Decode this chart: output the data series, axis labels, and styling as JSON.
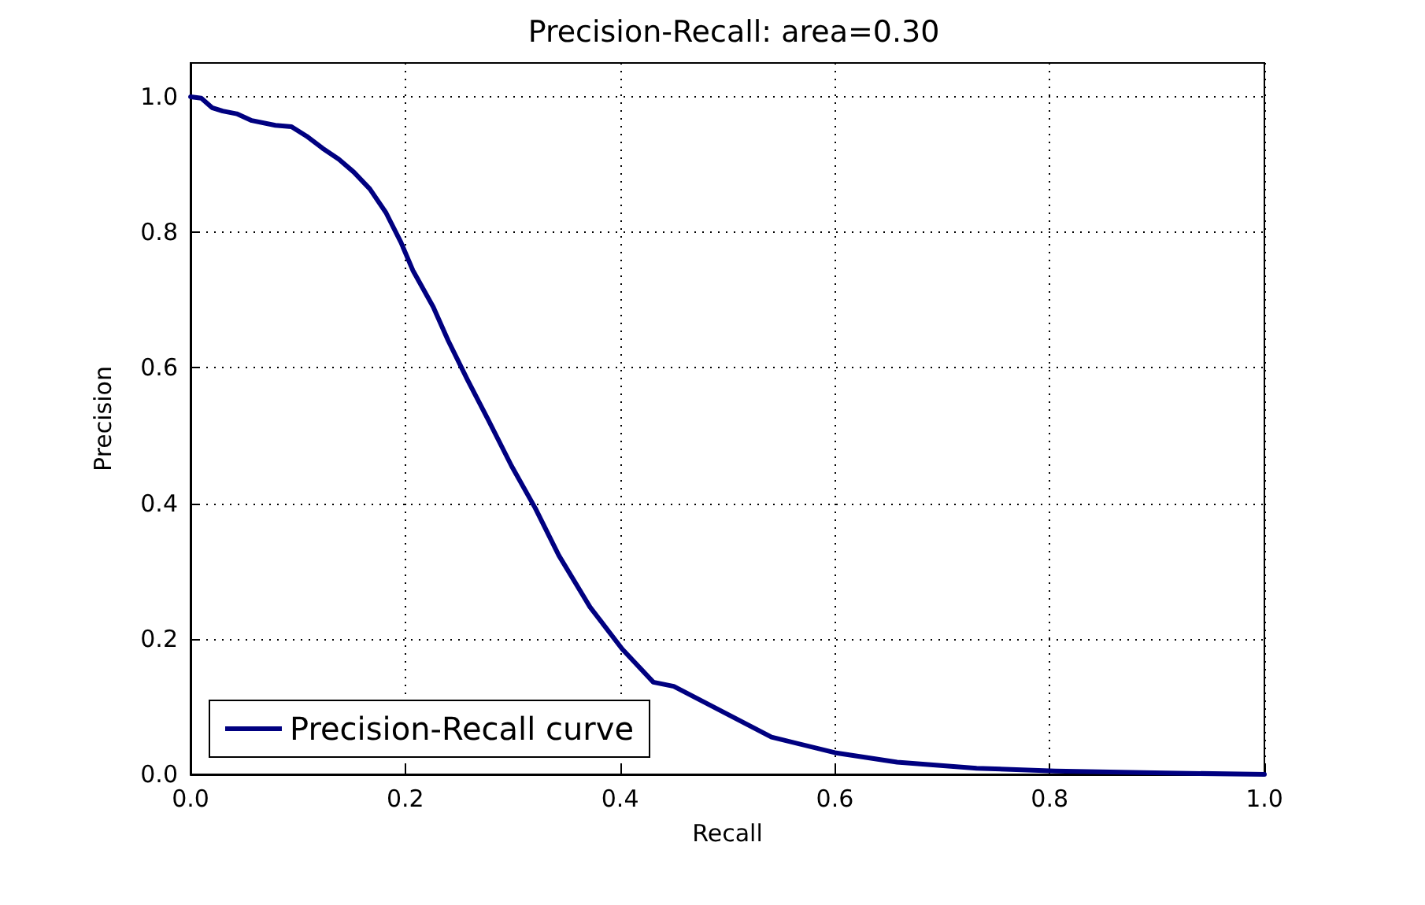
{
  "chart_data": {
    "type": "line",
    "title": "Precision-Recall: area=0.30",
    "xlabel": "Recall",
    "ylabel": "Precision",
    "x": [
      0,
      0.01,
      0.02,
      0.03,
      0.043,
      0.057,
      0.079,
      0.094,
      0.108,
      0.123,
      0.138,
      0.152,
      0.167,
      0.182,
      0.196,
      0.207,
      0.226,
      0.24,
      0.258,
      0.277,
      0.299,
      0.321,
      0.343,
      0.372,
      0.402,
      0.431,
      0.45,
      0.541,
      0.6,
      0.658,
      0.732,
      0.805,
      0.908,
      1.0
    ],
    "series": [
      {
        "name": "Precision-Recall curve",
        "color": "#000080",
        "values": [
          1.0,
          0.998,
          0.984,
          0.979,
          0.975,
          0.965,
          0.958,
          0.956,
          0.942,
          0.924,
          0.908,
          0.889,
          0.864,
          0.829,
          0.785,
          0.744,
          0.69,
          0.64,
          0.582,
          0.524,
          0.455,
          0.393,
          0.323,
          0.247,
          0.185,
          0.136,
          0.13,
          0.055,
          0.032,
          0.018,
          0.009,
          0.005,
          0.002,
          0.0
        ]
      }
    ],
    "xlim": [
      0,
      1
    ],
    "ylim": [
      0,
      1.05
    ],
    "xticks": [
      {
        "value": 0,
        "label": "0.0"
      },
      {
        "value": 0.2,
        "label": "0.2"
      },
      {
        "value": 0.4,
        "label": "0.4"
      },
      {
        "value": 0.6,
        "label": "0.6"
      },
      {
        "value": 0.8,
        "label": "0.8"
      },
      {
        "value": 1,
        "label": "1.0"
      }
    ],
    "yticks": [
      {
        "value": 0,
        "label": "0.0"
      },
      {
        "value": 0.2,
        "label": "0.2"
      },
      {
        "value": 0.4,
        "label": "0.4"
      },
      {
        "value": 0.6,
        "label": "0.6"
      },
      {
        "value": 0.8,
        "label": "0.8"
      },
      {
        "value": 1,
        "label": "1.0"
      }
    ],
    "grid": true,
    "legend": "bottom left",
    "line_style": "solid",
    "marker": "none"
  }
}
